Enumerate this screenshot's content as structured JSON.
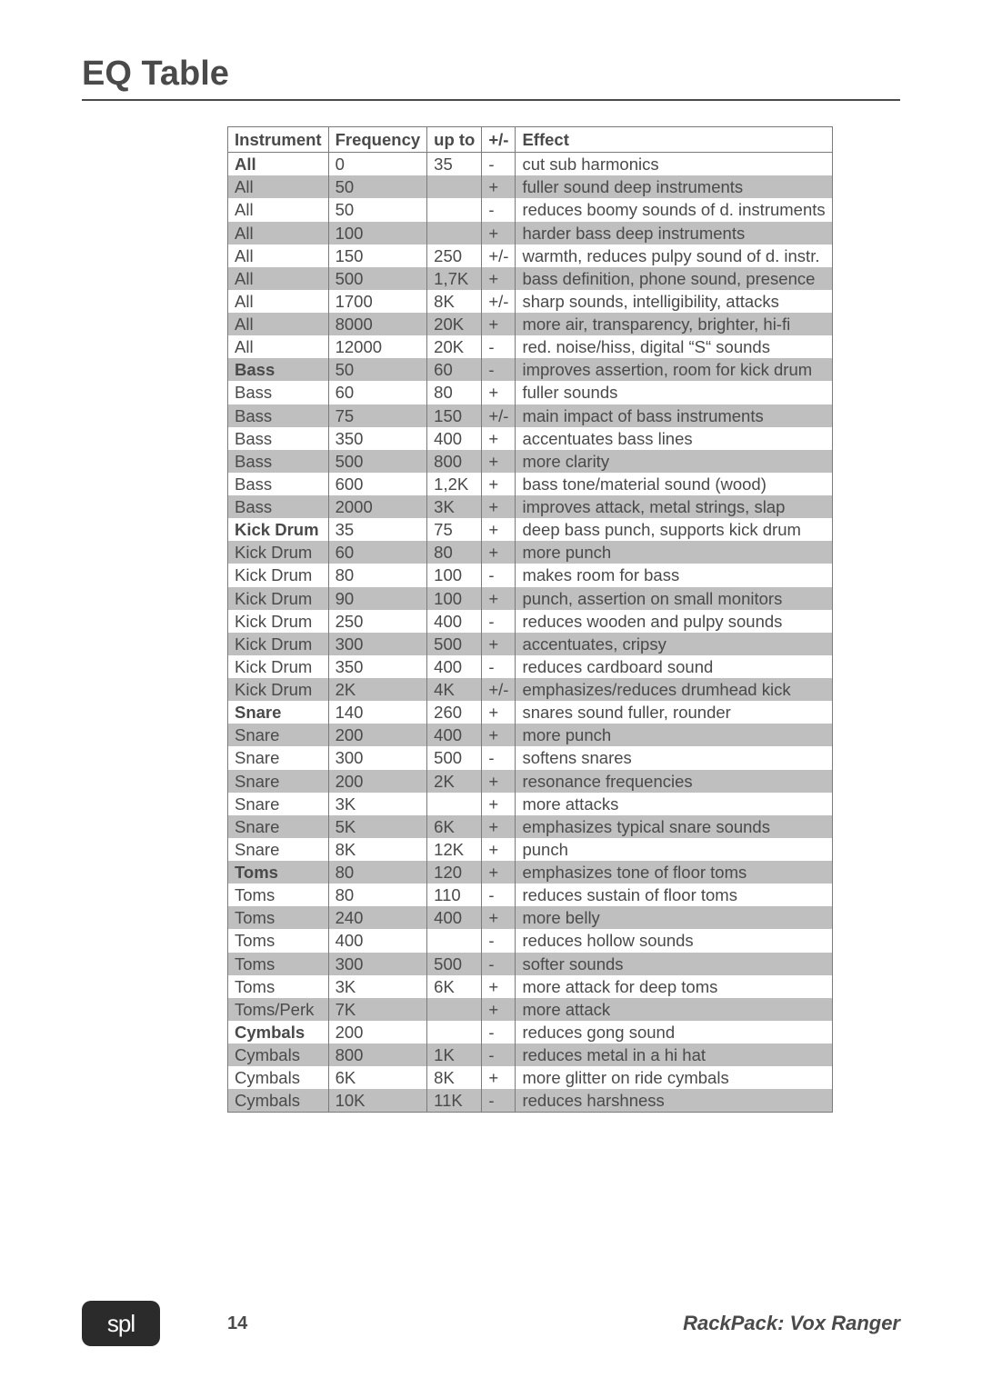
{
  "title": "EQ Table",
  "footer": {
    "logo": "spl",
    "page": "14",
    "doc": "RackPack: Vox Ranger"
  },
  "columns": [
    "Instrument",
    "Frequency",
    "up to",
    "+/-",
    "Effect"
  ],
  "rows": [
    {
      "bold": true,
      "alt": false,
      "c": [
        "All",
        "0",
        "35",
        "-",
        "cut sub harmonics"
      ]
    },
    {
      "bold": false,
      "alt": true,
      "c": [
        "All",
        "50",
        "",
        "+",
        "fuller sound deep instruments"
      ]
    },
    {
      "bold": false,
      "alt": false,
      "c": [
        "All",
        "50",
        "",
        "-",
        "reduces boomy sounds of d. instruments"
      ]
    },
    {
      "bold": false,
      "alt": true,
      "c": [
        "All",
        "100",
        "",
        "+",
        "harder bass deep instruments"
      ]
    },
    {
      "bold": false,
      "alt": false,
      "c": [
        "All",
        "150",
        "250",
        "+/-",
        "warmth, reduces pulpy sound of d. instr."
      ]
    },
    {
      "bold": false,
      "alt": true,
      "c": [
        "All",
        "500",
        "1,7K",
        "+",
        "bass definition, phone sound, presence"
      ]
    },
    {
      "bold": false,
      "alt": false,
      "c": [
        "All",
        "1700",
        "8K",
        "+/-",
        "sharp sounds, intelligibility, attacks"
      ]
    },
    {
      "bold": false,
      "alt": true,
      "c": [
        "All",
        "8000",
        "20K",
        "+",
        "more air, transparency, brighter, hi-fi"
      ]
    },
    {
      "bold": false,
      "alt": false,
      "c": [
        "All",
        "12000",
        "20K",
        "-",
        "red. noise/hiss, digital “S“ sounds"
      ]
    },
    {
      "bold": true,
      "alt": true,
      "c": [
        "Bass",
        "50",
        "60",
        "-",
        "improves assertion, room for kick drum"
      ]
    },
    {
      "bold": false,
      "alt": false,
      "c": [
        "Bass",
        "60",
        "80",
        "+",
        "fuller sounds"
      ]
    },
    {
      "bold": false,
      "alt": true,
      "c": [
        "Bass",
        "75",
        "150",
        "+/-",
        "main impact of bass instruments"
      ]
    },
    {
      "bold": false,
      "alt": false,
      "c": [
        "Bass",
        "350",
        "400",
        "+",
        "accentuates bass lines"
      ]
    },
    {
      "bold": false,
      "alt": true,
      "c": [
        "Bass",
        "500",
        "800",
        "+",
        "more clarity"
      ]
    },
    {
      "bold": false,
      "alt": false,
      "c": [
        "Bass",
        "600",
        "1,2K",
        "+",
        "bass tone/material sound (wood)"
      ]
    },
    {
      "bold": false,
      "alt": true,
      "c": [
        "Bass",
        "2000",
        "3K",
        "+",
        "improves attack, metal strings, slap"
      ]
    },
    {
      "bold": true,
      "alt": false,
      "c": [
        "Kick Drum",
        "35",
        "75",
        "+",
        "deep bass punch, supports kick drum"
      ]
    },
    {
      "bold": false,
      "alt": true,
      "c": [
        "Kick Drum",
        "60",
        "80",
        "+",
        "more punch"
      ]
    },
    {
      "bold": false,
      "alt": false,
      "c": [
        "Kick Drum",
        "80",
        "100",
        "-",
        "makes room for bass"
      ]
    },
    {
      "bold": false,
      "alt": true,
      "c": [
        "Kick Drum",
        "90",
        "100",
        "+",
        "punch, assertion on small monitors"
      ]
    },
    {
      "bold": false,
      "alt": false,
      "c": [
        "Kick Drum",
        "250",
        "400",
        "-",
        "reduces wooden and pulpy sounds"
      ]
    },
    {
      "bold": false,
      "alt": true,
      "c": [
        "Kick Drum",
        "300",
        "500",
        "+",
        "accentuates, cripsy"
      ]
    },
    {
      "bold": false,
      "alt": false,
      "c": [
        "Kick Drum",
        "350",
        "400",
        "-",
        "reduces cardboard sound"
      ]
    },
    {
      "bold": false,
      "alt": true,
      "c": [
        "Kick Drum",
        "2K",
        "4K",
        "+/-",
        "emphasizes/reduces drumhead kick"
      ]
    },
    {
      "bold": true,
      "alt": false,
      "c": [
        "Snare",
        "140",
        "260",
        "+",
        "snares sound fuller, rounder"
      ]
    },
    {
      "bold": false,
      "alt": true,
      "c": [
        "Snare",
        "200",
        "400",
        "+",
        "more punch"
      ]
    },
    {
      "bold": false,
      "alt": false,
      "c": [
        "Snare",
        "300",
        "500",
        "-",
        "softens snares"
      ]
    },
    {
      "bold": false,
      "alt": true,
      "c": [
        "Snare",
        "200",
        "2K",
        "+",
        "resonance frequencies"
      ]
    },
    {
      "bold": false,
      "alt": false,
      "c": [
        "Snare",
        "3K",
        "",
        "+",
        "more attacks"
      ]
    },
    {
      "bold": false,
      "alt": true,
      "c": [
        "Snare",
        "5K",
        "6K",
        "+",
        "emphasizes typical snare sounds"
      ]
    },
    {
      "bold": false,
      "alt": false,
      "c": [
        "Snare",
        "8K",
        "12K",
        "+",
        "punch"
      ]
    },
    {
      "bold": true,
      "alt": true,
      "c": [
        "Toms",
        "80",
        "120",
        "+",
        "emphasizes tone of floor toms"
      ]
    },
    {
      "bold": false,
      "alt": false,
      "c": [
        "Toms",
        "80",
        "110",
        "-",
        "reduces sustain of floor toms"
      ]
    },
    {
      "bold": false,
      "alt": true,
      "c": [
        "Toms",
        "240",
        "400",
        "+",
        "more belly"
      ]
    },
    {
      "bold": false,
      "alt": false,
      "c": [
        "Toms",
        "400",
        "",
        "-",
        "reduces hollow sounds"
      ]
    },
    {
      "bold": false,
      "alt": true,
      "c": [
        "Toms",
        "300",
        "500",
        "-",
        "softer sounds"
      ]
    },
    {
      "bold": false,
      "alt": false,
      "c": [
        "Toms",
        "3K",
        "6K",
        "+",
        "more attack for deep toms"
      ]
    },
    {
      "bold": false,
      "alt": true,
      "c": [
        "Toms/Perk",
        "7K",
        "",
        "+",
        "more attack"
      ]
    },
    {
      "bold": true,
      "alt": false,
      "c": [
        "Cymbals",
        "200",
        "",
        "-",
        "reduces gong sound"
      ]
    },
    {
      "bold": false,
      "alt": true,
      "c": [
        "Cymbals",
        "800",
        "1K",
        "-",
        "reduces metal in a hi hat"
      ]
    },
    {
      "bold": false,
      "alt": false,
      "c": [
        "Cymbals",
        "6K",
        "8K",
        "+",
        "more glitter on ride cymbals"
      ]
    },
    {
      "bold": false,
      "alt": true,
      "c": [
        "Cymbals",
        "10K",
        "11K",
        "-",
        "reduces harshness"
      ]
    }
  ]
}
